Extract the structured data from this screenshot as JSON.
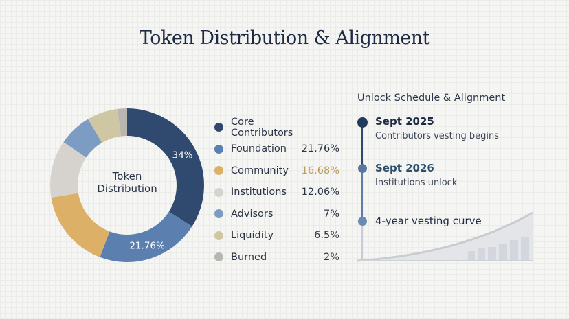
{
  "title": "Token Distribution & Alignment",
  "chart_data": {
    "type": "pie",
    "title": "Token Distribution",
    "center_label": [
      "Token",
      "Distribution"
    ],
    "slices": [
      {
        "label": "Core Contributors",
        "value": 34,
        "display": "",
        "slice_label": "34%",
        "color": "#2f4a6e"
      },
      {
        "label": "Foundation",
        "value": 21.76,
        "display": "21.76%",
        "slice_label": "21.76%",
        "color": "#5b80b0"
      },
      {
        "label": "Community",
        "value": 16.68,
        "display": "16.68%",
        "slice_label": "",
        "color": "#dcb066"
      },
      {
        "label": "Institutions",
        "value": 12.06,
        "display": "12.06%",
        "slice_label": "",
        "color": "#d6d3cf"
      },
      {
        "label": "Advisors",
        "value": 7,
        "display": "7%",
        "slice_label": "",
        "color": "#7d9cc4"
      },
      {
        "label": "Liquidity",
        "value": 6.5,
        "display": "6.5%",
        "slice_label": "",
        "color": "#cfc6a4"
      },
      {
        "label": "Burned",
        "value": 2,
        "display": "2%",
        "slice_label": "",
        "color": "#b9b6b2"
      }
    ]
  },
  "schedule": {
    "heading": "Unlock Schedule & Alignment",
    "events": [
      {
        "date": "Sept 2025",
        "desc": "Contributors vesting begins"
      },
      {
        "date": "Sept 2026",
        "desc": "Institutions unlock"
      },
      {
        "date": "4-year vesting curve",
        "desc": ""
      }
    ]
  }
}
